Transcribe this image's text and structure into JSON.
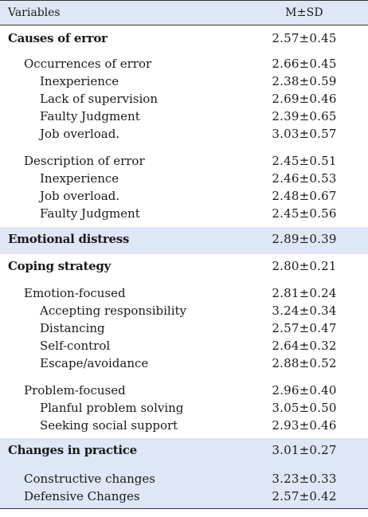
{
  "header": {
    "variable_label": "Variables",
    "stat_label": "M±SD"
  },
  "sections": [
    {
      "label": "Causes of error",
      "value": "2.57±0.45",
      "groups": [
        {
          "label": "Occurrences of error",
          "value": "2.66±0.45",
          "items": [
            {
              "label": "Inexperience",
              "value": "2.38±0.59"
            },
            {
              "label": "Lack of supervision",
              "value": "2.69±0.46"
            },
            {
              "label": "Faulty Judgment",
              "value": "2.39±0.65"
            },
            {
              "label": "Job overload.",
              "value": "3.03±0.57"
            }
          ]
        },
        {
          "label": "Description of error",
          "value": "2.45±0.51",
          "items": [
            {
              "label": "Inexperience",
              "value": "2.46±0.53"
            },
            {
              "label": "Job overload.",
              "value": "2.48±0.67"
            },
            {
              "label": "Faulty Judgment",
              "value": "2.45±0.56"
            }
          ]
        }
      ]
    },
    {
      "label": "Emotional distress",
      "value": "2.89±0.39",
      "groups": []
    },
    {
      "label": "Coping strategy",
      "value": "2.80±0.21",
      "groups": [
        {
          "label": "Emotion-focused",
          "value": "2.81±0.24",
          "items": [
            {
              "label": "Accepting responsibility",
              "value": "3.24±0.34"
            },
            {
              "label": "Distancing",
              "value": "2.57±0.47"
            },
            {
              "label": "Self-control",
              "value": "2.64±0.32"
            },
            {
              "label": "Escape/avoidance",
              "value": "2.88±0.52"
            }
          ]
        },
        {
          "label": "Problem-focused",
          "value": "2.96±0.40",
          "items": [
            {
              "label": "Planful problem solving",
              "value": "3.05±0.50"
            },
            {
              "label": "Seeking social support",
              "value": "2.93±0.46"
            }
          ]
        }
      ]
    },
    {
      "label": "Changes in practice",
      "value": "3.01±0.27",
      "groups": [
        {
          "label": "Constructive changes",
          "value": "3.23±0.33",
          "items": []
        },
        {
          "label": "Defensive Changes",
          "value": "2.57±0.42",
          "items": []
        }
      ]
    }
  ]
}
